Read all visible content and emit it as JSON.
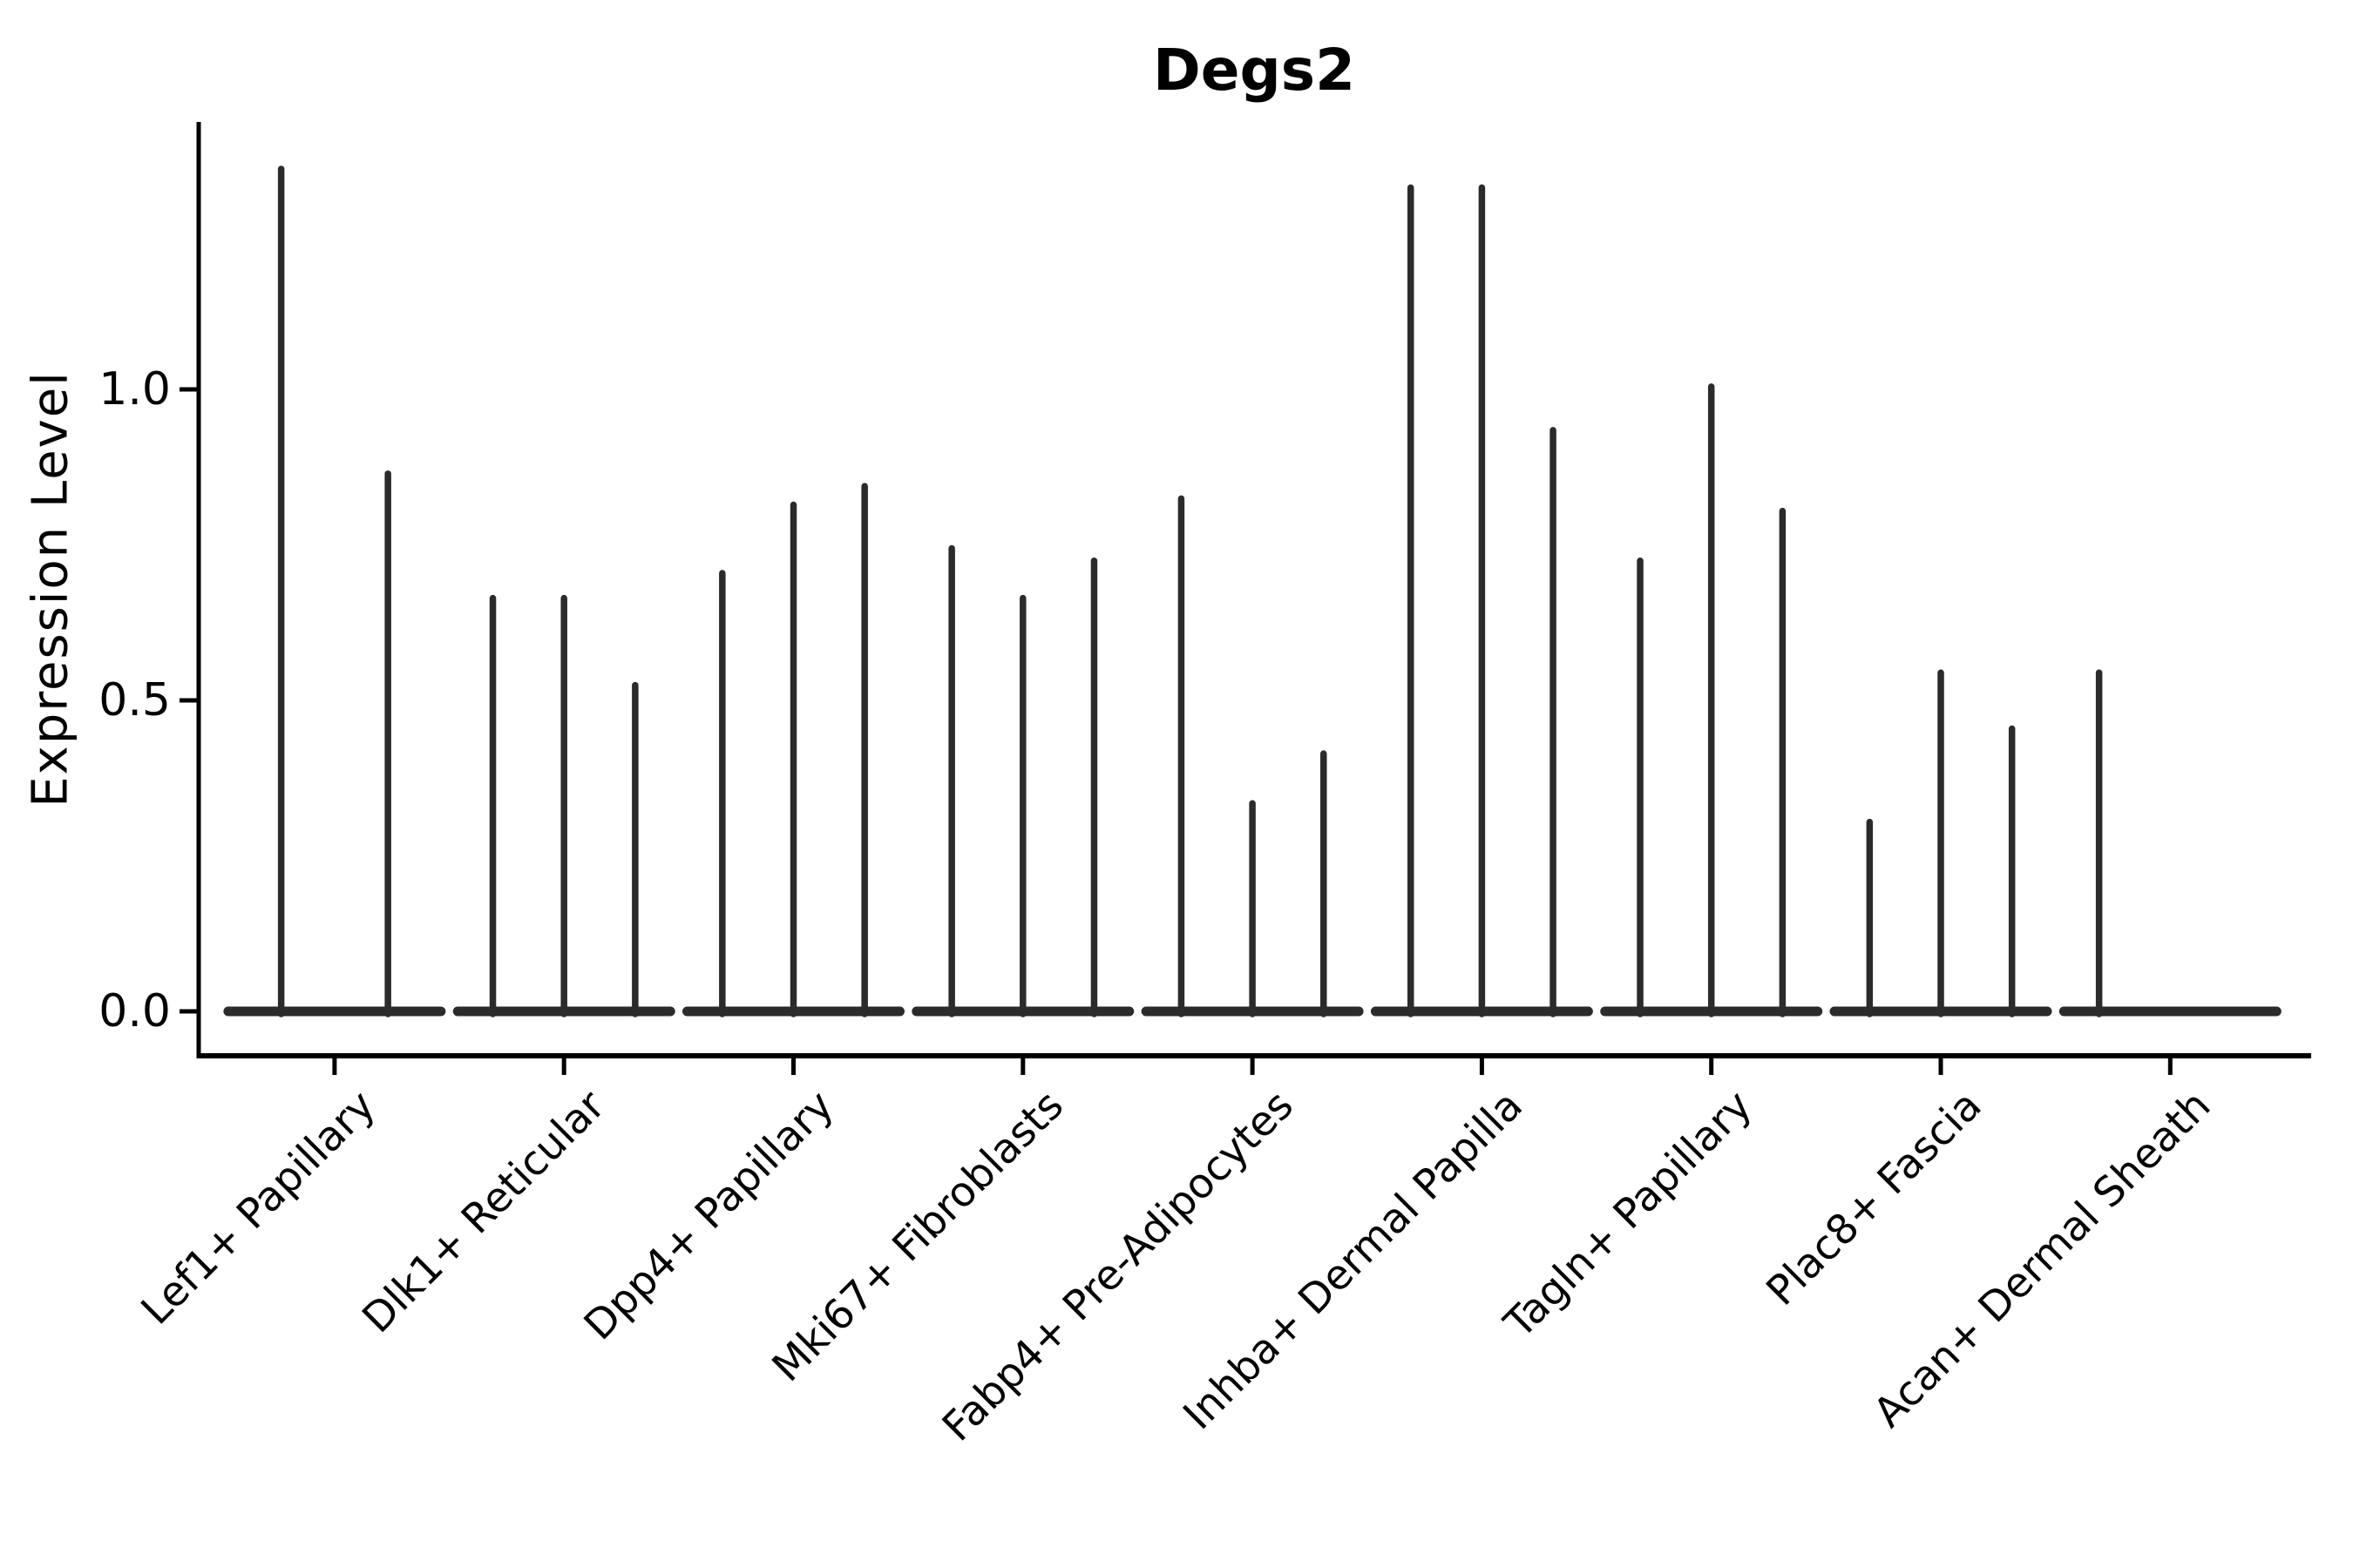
{
  "chart_data": {
    "type": "violin",
    "title": "Degs2",
    "ylabel": "Expression Level",
    "xlabel": "",
    "grid": false,
    "legend": "none",
    "ylim": [
      -0.07,
      1.43
    ],
    "yticks": [
      0.0,
      0.5,
      1.0
    ],
    "ytick_labels": [
      "0.0",
      "0.5",
      "1.0"
    ],
    "categories": [
      "Lef1+ Papillary",
      "Dlk1+ Reticular",
      "Dpp4+ Papillary",
      "Mki67+ Fibroblasts",
      "Fabp4+ Pre-Adipocytes",
      "Inhba+ Dermal Papilla",
      "Tagln+ Papillary",
      "Plac8+ Fascia",
      "Acan+ Dermal Sheath"
    ],
    "groups": [
      {
        "category": "Lef1+ Papillary",
        "violin_maxima": [
          1.36,
          0.87
        ]
      },
      {
        "category": "Dlk1+ Reticular",
        "violin_maxima": [
          0.67,
          0.67,
          0.53
        ]
      },
      {
        "category": "Dpp4+ Papillary",
        "violin_maxima": [
          0.71,
          0.82,
          0.85
        ]
      },
      {
        "category": "Mki67+ Fibroblasts",
        "violin_maxima": [
          0.75,
          0.67,
          0.73
        ]
      },
      {
        "category": "Fabp4+ Pre-Adipocytes",
        "violin_maxima": [
          0.83,
          0.34,
          0.42
        ]
      },
      {
        "category": "Inhba+ Dermal Papilla",
        "violin_maxima": [
          1.33,
          1.33,
          0.94
        ]
      },
      {
        "category": "Tagln+ Papillary",
        "violin_maxima": [
          0.73,
          1.01,
          0.81
        ]
      },
      {
        "category": "Plac8+ Fascia",
        "violin_maxima": [
          0.31,
          0.55,
          0.46
        ]
      },
      {
        "category": "Acan+ Dermal Sheath",
        "violin_maxima": [
          0.55,
          0.0,
          0.0
        ]
      }
    ],
    "violin_color": "#2b2b2b",
    "axis_color": "#000000"
  }
}
